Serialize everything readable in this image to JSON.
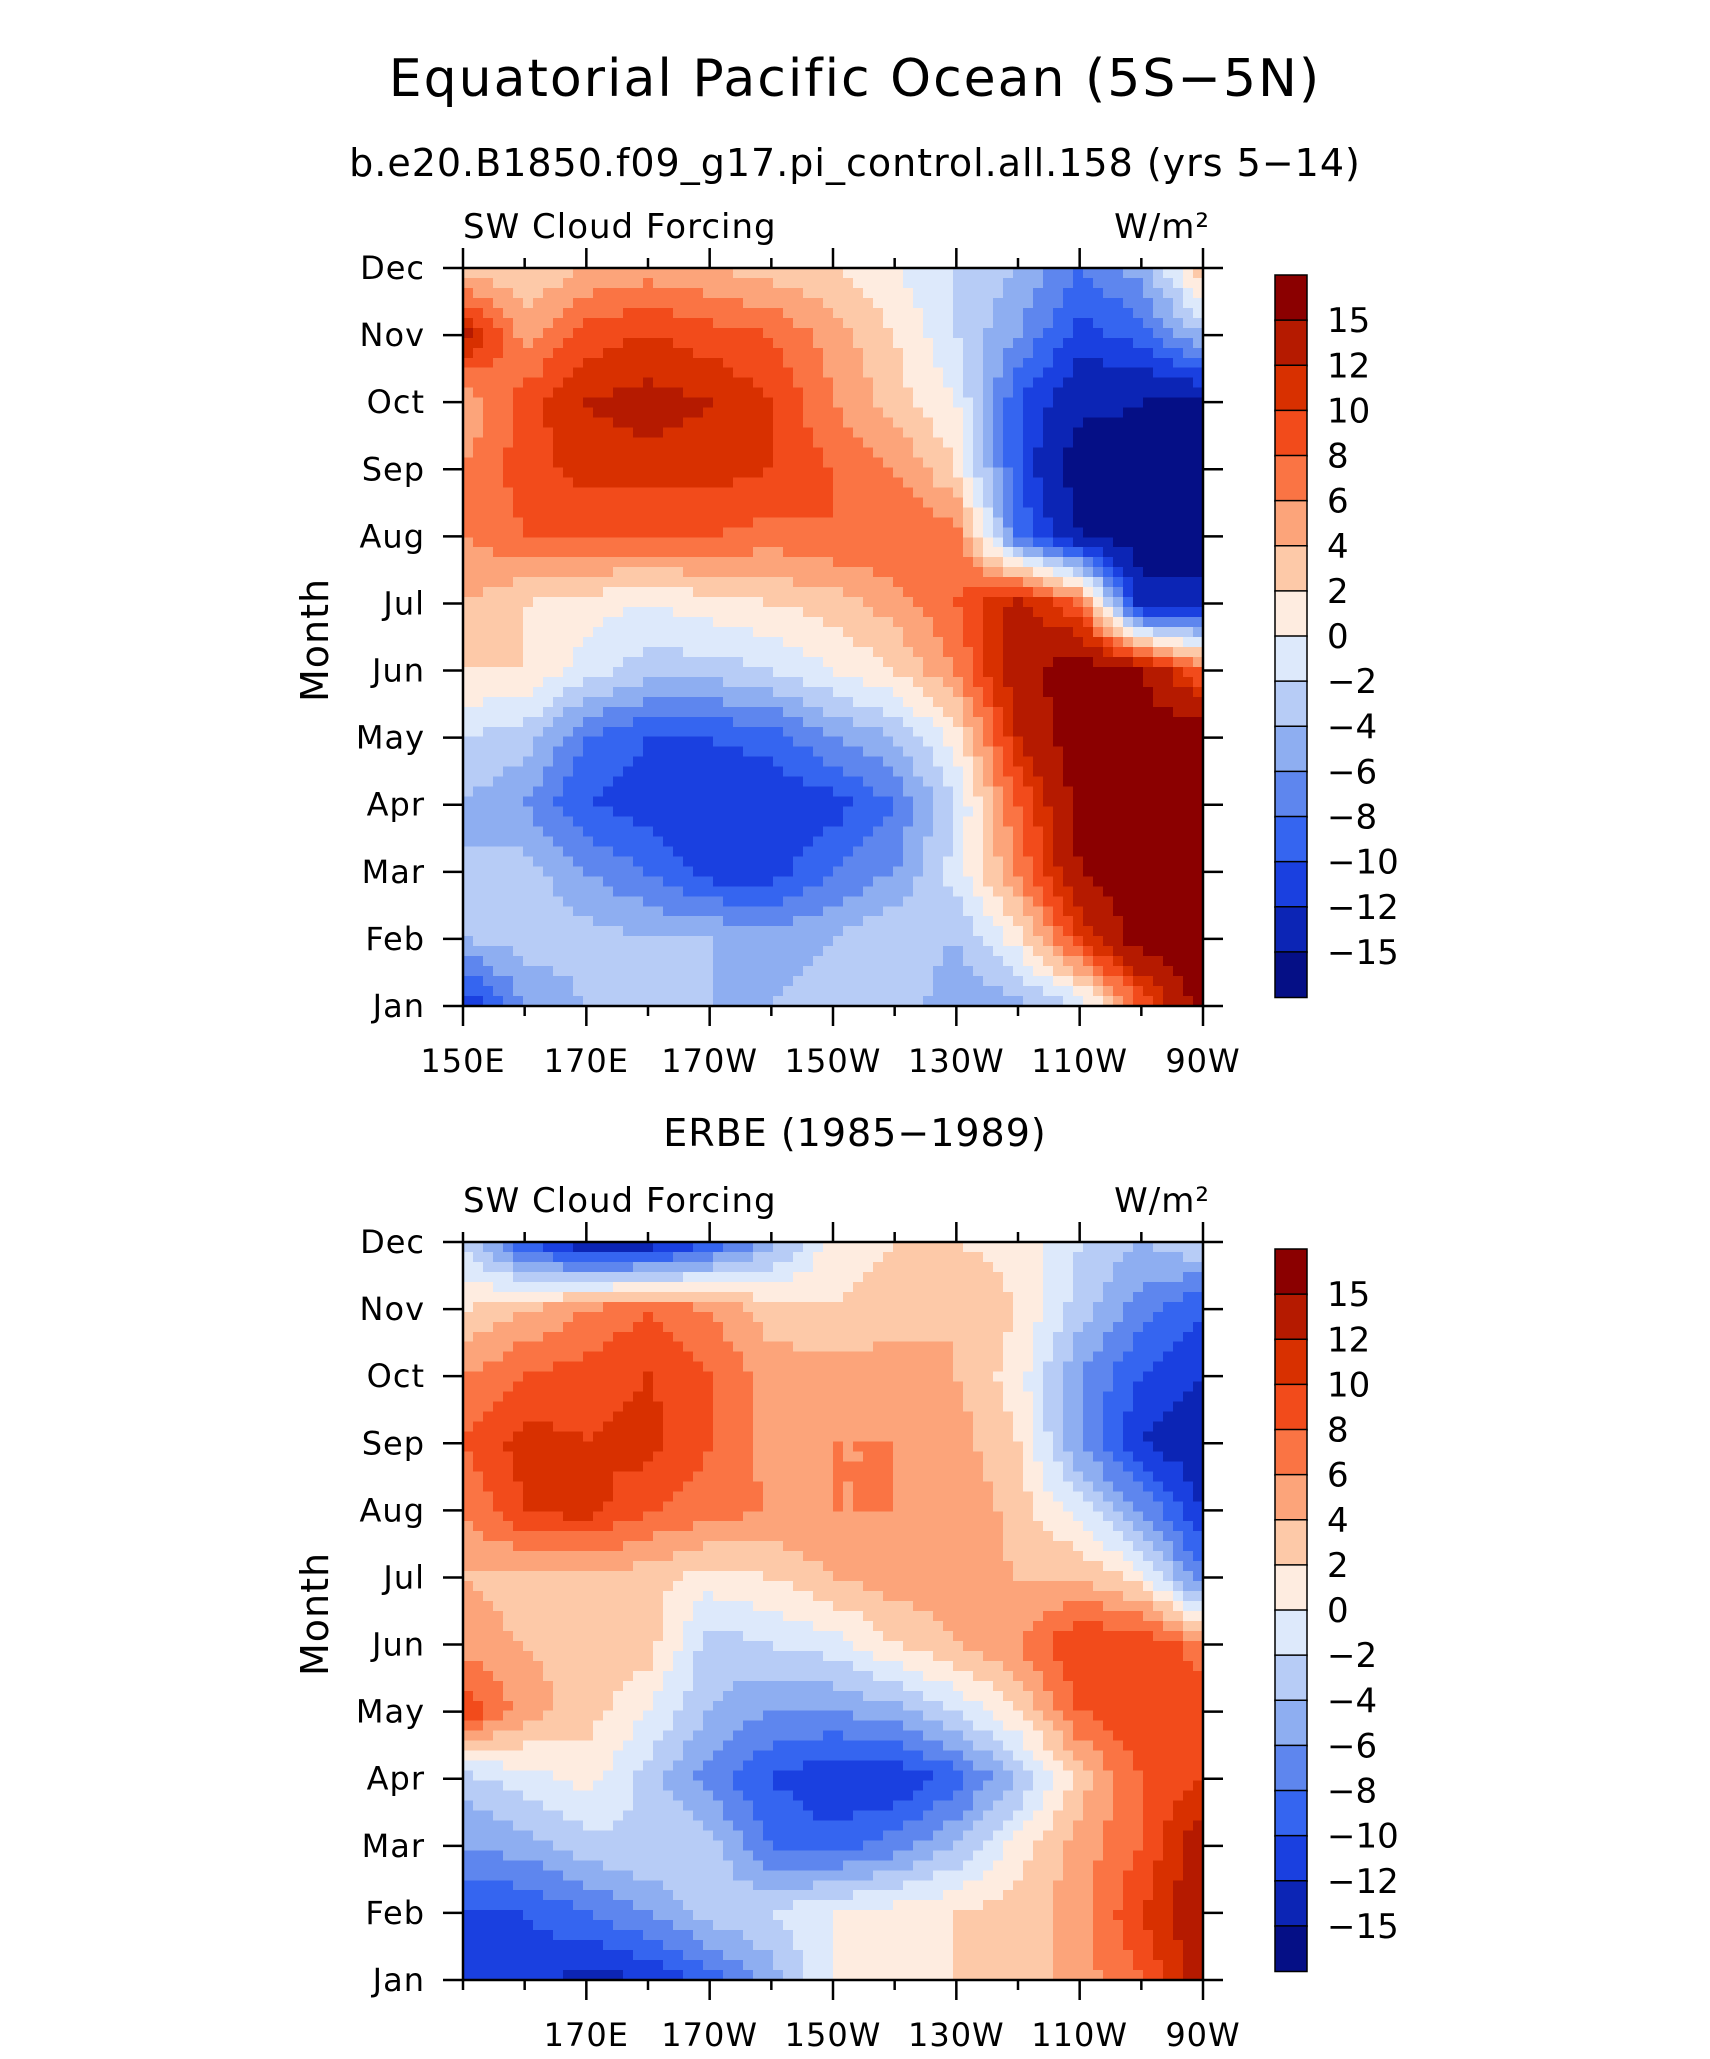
{
  "figure": {
    "title": "Equatorial Pacific Ocean (5S−5N)"
  },
  "colorbar": {
    "labels": [
      "15",
      "12",
      "10",
      "8",
      "6",
      "4",
      "2",
      "0",
      "−2",
      "−4",
      "−6",
      "−8",
      "−10",
      "−12",
      "−15"
    ],
    "colors": [
      "#8b0000",
      "#b51a00",
      "#d83000",
      "#f24b1b",
      "#fa7444",
      "#fca47a",
      "#fdc9a8",
      "#feece0",
      "#dde9fb",
      "#b7ccf6",
      "#8eaef1",
      "#5e86ee",
      "#3565f0",
      "#1a40e0",
      "#0c25b5",
      "#050f86"
    ]
  },
  "chart_data": [
    {
      "type": "heatmap",
      "title": "b.e20.B1850.f09_g17.pi_control.all.158 (yrs 5−14)",
      "left_title": "SW Cloud Forcing",
      "right_title": "W/m²",
      "ylabel": "Month",
      "xlim": [
        150,
        270
      ],
      "x_unit": "longitude (degrees east)",
      "x_tick_values": [
        150,
        170,
        190,
        210,
        230,
        250,
        270
      ],
      "x_tick_labels": [
        "150E",
        "170E",
        "170W",
        "150W",
        "130W",
        "110W",
        "90W"
      ],
      "y_tick_labels": [
        "Jan",
        "Feb",
        "Mar",
        "Apr",
        "May",
        "Jun",
        "Jul",
        "Aug",
        "Sep",
        "Oct",
        "Nov",
        "Dec"
      ],
      "longitudes": [
        150,
        160,
        170,
        180,
        190,
        200,
        210,
        220,
        230,
        240,
        250,
        260,
        270
      ],
      "months": [
        "Jan",
        "Feb",
        "Mar",
        "Apr",
        "May",
        "Jun",
        "Jul",
        "Aug",
        "Sep",
        "Oct",
        "Nov",
        "Dec"
      ],
      "values": [
        [
          -12,
          -6,
          -4,
          -2,
          -4,
          -4,
          -3,
          -2,
          -6,
          -5,
          -2,
          8,
          17
        ],
        [
          -4,
          -3,
          -3,
          -4,
          -4,
          -5,
          -4,
          -2,
          -4,
          1,
          10,
          17,
          17
        ],
        [
          -4,
          -3,
          -6,
          -8,
          -11,
          -11,
          -8,
          -6,
          -1,
          6,
          15,
          17,
          17
        ],
        [
          -4,
          -6,
          -10,
          -11,
          -12,
          -12,
          -11,
          -8,
          -2,
          8,
          16,
          17,
          17
        ],
        [
          -2,
          -3,
          -8,
          -10,
          -10,
          -9,
          -6,
          -4,
          1,
          12,
          17,
          17,
          17
        ],
        [
          2,
          2,
          -1,
          -3,
          -3,
          -2,
          0,
          2,
          6,
          14,
          17,
          15,
          8
        ],
        [
          4,
          2,
          1,
          0,
          1,
          2,
          3,
          5,
          8,
          13,
          8,
          -14,
          -14
        ],
        [
          6,
          8,
          8,
          8,
          8,
          7,
          8,
          8,
          7,
          -8,
          -15,
          -17,
          -17
        ],
        [
          6,
          9,
          11,
          11,
          11,
          10,
          8,
          6,
          2,
          -10,
          -17,
          -17,
          -17
        ],
        [
          4,
          9,
          12,
          13,
          12,
          10,
          6,
          3,
          0,
          -10,
          -14,
          -15,
          -15
        ],
        [
          13,
          5,
          9,
          10,
          9,
          8,
          5,
          2,
          -2,
          -6,
          -11,
          -9,
          -4
        ],
        [
          3,
          2,
          4,
          5,
          4,
          3,
          2,
          0,
          -2,
          -4,
          -8,
          -5,
          4
        ]
      ]
    },
    {
      "type": "heatmap",
      "title": "ERBE (1985−1989)",
      "left_title": "SW Cloud Forcing",
      "right_title": "W/m²",
      "ylabel": "Month",
      "xlim": [
        150,
        270
      ],
      "x_unit": "longitude (degrees east)",
      "x_tick_values": [
        170,
        190,
        210,
        230,
        250,
        270
      ],
      "x_tick_labels": [
        "170E",
        "170W",
        "150W",
        "130W",
        "110W",
        "90W"
      ],
      "y_tick_labels": [
        "Jan",
        "Feb",
        "Mar",
        "Apr",
        "May",
        "Jun",
        "Jul",
        "Aug",
        "Sep",
        "Oct",
        "Nov",
        "Dec"
      ],
      "longitudes": [
        150,
        160,
        170,
        180,
        190,
        200,
        210,
        220,
        230,
        240,
        250,
        260,
        270
      ],
      "months": [
        "Jan",
        "Feb",
        "Mar",
        "Apr",
        "May",
        "Jun",
        "Jul",
        "Aug",
        "Sep",
        "Oct",
        "Nov",
        "Dec"
      ],
      "values": [
        [
          -12,
          -11,
          -13,
          -12,
          -9,
          -5,
          0,
          0,
          2,
          3,
          5,
          8,
          14
        ],
        [
          -10,
          -10,
          -8,
          -6,
          -3,
          -2,
          0,
          1,
          2,
          3,
          5,
          10,
          14
        ],
        [
          -6,
          -5,
          -3,
          -2,
          -3,
          -8,
          -9,
          -7,
          -4,
          1,
          5,
          8,
          14
        ],
        [
          -3,
          -1,
          1,
          -3,
          -7,
          -10,
          -12,
          -12,
          -9,
          -4,
          3,
          8,
          10
        ],
        [
          10,
          5,
          3,
          0,
          -4,
          -6,
          -6,
          -5,
          -2,
          2,
          8,
          10,
          9
        ],
        [
          5,
          4,
          3,
          3,
          -3,
          -2,
          -1,
          2,
          4,
          6,
          10,
          10,
          7
        ],
        [
          4,
          3,
          3,
          3,
          1,
          2,
          4,
          5,
          5,
          4,
          4,
          1,
          -8
        ],
        [
          6,
          10,
          11,
          8,
          7,
          6,
          6,
          6,
          6,
          3,
          -1,
          -6,
          -12
        ],
        [
          8,
          11,
          10,
          11,
          8,
          5,
          6,
          6,
          5,
          2,
          -6,
          -12,
          -14
        ],
        [
          6,
          8,
          9,
          10,
          8,
          5,
          5,
          5,
          4,
          1,
          -6,
          -10,
          -12
        ],
        [
          2,
          4,
          6,
          8,
          6,
          3,
          2,
          3,
          4,
          2,
          -3,
          -7,
          -10
        ],
        [
          -2,
          -10,
          -14,
          -14,
          -10,
          -5,
          1,
          2,
          2,
          1,
          -2,
          -4,
          -2
        ]
      ]
    }
  ]
}
